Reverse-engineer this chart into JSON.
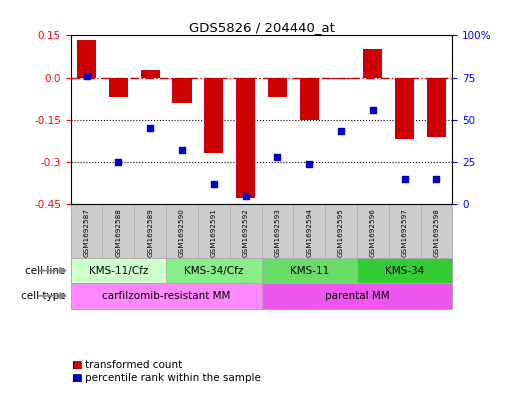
{
  "title": "GDS5826 / 204440_at",
  "samples": [
    "GSM1692587",
    "GSM1692588",
    "GSM1692589",
    "GSM1692590",
    "GSM1692591",
    "GSM1692592",
    "GSM1692593",
    "GSM1692594",
    "GSM1692595",
    "GSM1692596",
    "GSM1692597",
    "GSM1692598"
  ],
  "transformed_count": [
    0.135,
    -0.07,
    0.025,
    -0.09,
    -0.27,
    -0.43,
    -0.07,
    -0.15,
    -0.005,
    0.1,
    -0.22,
    -0.21
  ],
  "percentile_rank": [
    76,
    25,
    45,
    32,
    12,
    5,
    28,
    24,
    43,
    56,
    15,
    15
  ],
  "ylim_left": [
    -0.45,
    0.15
  ],
  "ylim_right": [
    0,
    100
  ],
  "yticks_left": [
    0.15,
    0.0,
    -0.15,
    -0.3,
    -0.45
  ],
  "yticks_right": [
    100,
    75,
    50,
    25,
    0
  ],
  "hline_y": 0.0,
  "dotted_lines": [
    -0.15,
    -0.3
  ],
  "bar_color": "#cc0000",
  "scatter_color": "#0000cc",
  "cell_line_groups": [
    {
      "label": "KMS-11/Cfz",
      "start": 0,
      "end": 3,
      "color": "#ccffcc"
    },
    {
      "label": "KMS-34/Cfz",
      "start": 3,
      "end": 6,
      "color": "#88ee88"
    },
    {
      "label": "KMS-11",
      "start": 6,
      "end": 9,
      "color": "#66dd66"
    },
    {
      "label": "KMS-34",
      "start": 9,
      "end": 12,
      "color": "#33cc33"
    }
  ],
  "cell_type_groups": [
    {
      "label": "carfilzomib-resistant MM",
      "start": 0,
      "end": 6,
      "color": "#ff88ff"
    },
    {
      "label": "parental MM",
      "start": 6,
      "end": 12,
      "color": "#ee55ee"
    }
  ],
  "cell_line_label": "cell line",
  "cell_type_label": "cell type",
  "legend_bar": "transformed count",
  "legend_scatter": "percentile rank within the sample",
  "bar_width": 0.6,
  "background_color": "#ffffff",
  "hline_color": "#cc0000",
  "dotted_line_color": "#000000",
  "sample_box_color": "#cccccc",
  "sample_box_edge": "#aaaaaa"
}
